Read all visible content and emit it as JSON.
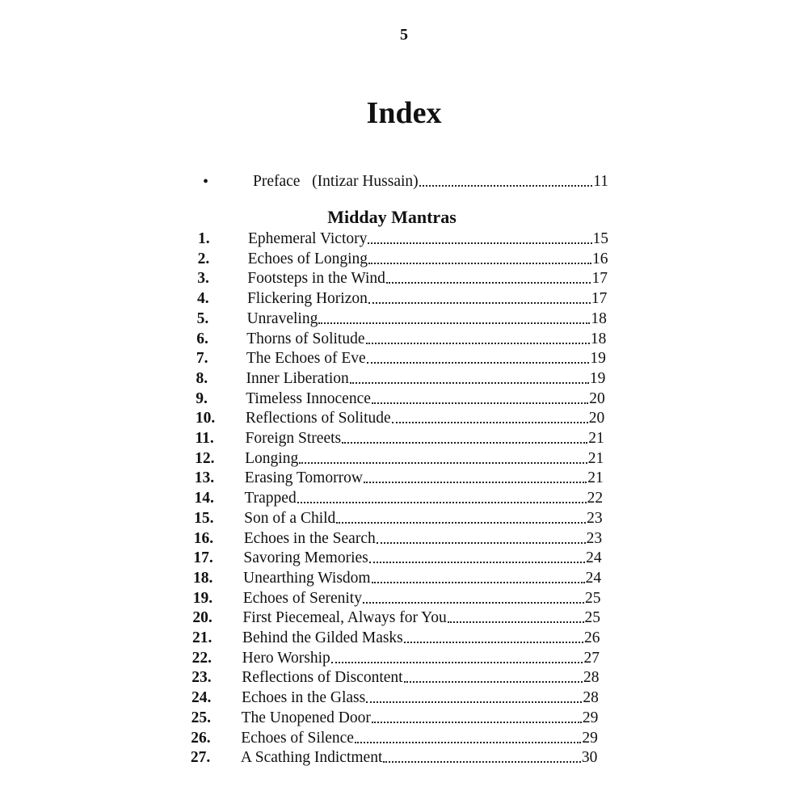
{
  "page_number": "5",
  "title": "Index",
  "preface": {
    "bullet": "•",
    "label": "Preface   (Intizar Hussain)",
    "page": "11"
  },
  "section": {
    "heading": "Midday Mantras",
    "entries": [
      {
        "num": "1.",
        "title": "Ephemeral Victory",
        "page": "15"
      },
      {
        "num": "2.",
        "title": "Echoes of Longing",
        "page": "16"
      },
      {
        "num": "3.",
        "title": "Footsteps in the Wind",
        "page": "17"
      },
      {
        "num": "4.",
        "title": "Flickering Horizon",
        "page": "17"
      },
      {
        "num": "5.",
        "title": "Unraveling",
        "page": "18"
      },
      {
        "num": "6.",
        "title": "Thorns of Solitude",
        "page": "18"
      },
      {
        "num": "7.",
        "title": "The Echoes of Eve",
        "page": "19"
      },
      {
        "num": "8.",
        "title": "Inner Liberation",
        "page": "19"
      },
      {
        "num": "9.",
        "title": "Timeless Innocence",
        "page": "20"
      },
      {
        "num": "10.",
        "title": "Reflections of Solitude",
        "page": "20"
      },
      {
        "num": "11.",
        "title": "Foreign Streets",
        "page": "21"
      },
      {
        "num": "12.",
        "title": "Longing",
        "page": "21"
      },
      {
        "num": "13.",
        "title": "Erasing Tomorrow",
        "page": "21"
      },
      {
        "num": "14.",
        "title": "Trapped",
        "page": "22"
      },
      {
        "num": "15.",
        "title": "Son of a Child",
        "page": "23"
      },
      {
        "num": "16.",
        "title": "Echoes in the Search",
        "page": "23"
      },
      {
        "num": "17.",
        "title": "Savoring Memories",
        "page": "24"
      },
      {
        "num": "18.",
        "title": "Unearthing Wisdom",
        "page": "24"
      },
      {
        "num": "19.",
        "title": "Echoes of Serenity",
        "page": "25"
      },
      {
        "num": "20.",
        "title": "First Piecemeal, Always for You",
        "page": "25"
      },
      {
        "num": "21.",
        "title": "Behind the Gilded Masks",
        "page": "26"
      },
      {
        "num": "22.",
        "title": "Hero Worship",
        "page": "27"
      },
      {
        "num": "23.",
        "title": "Reflections of Discontent",
        "page": "28"
      },
      {
        "num": "24.",
        "title": "Echoes in the Glass",
        "page": "28"
      },
      {
        "num": "25.",
        "title": "The Unopened Door",
        "page": "29"
      },
      {
        "num": "26.",
        "title": "Echoes of Silence",
        "page": "29"
      },
      {
        "num": "27.",
        "title": "A Scathing Indictment",
        "page": "30"
      }
    ]
  }
}
